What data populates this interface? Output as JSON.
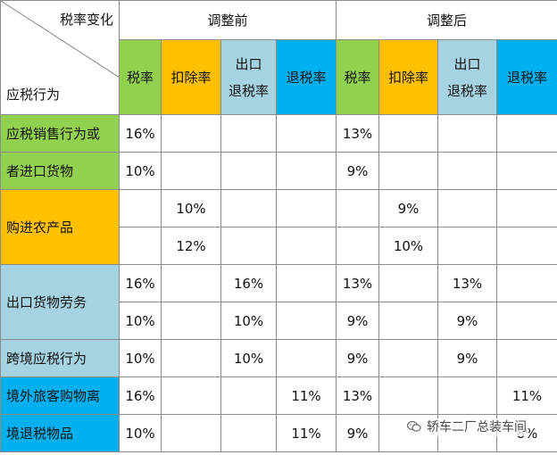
{
  "corner": {
    "top": "税率变化",
    "bottom": "应税行为"
  },
  "groups": {
    "before": "调整前",
    "after": "调整后"
  },
  "subheaders": {
    "tax_rate": "税率",
    "deduction": "扣除率",
    "export_rebate_line1": "出口",
    "export_rebate_line2": "退税率",
    "rebate": "退税率"
  },
  "categories": {
    "sales_line1": "应税销售行为或",
    "sales_line2": "者进口货物",
    "farm": "购进农产品",
    "export": "出口货物劳务",
    "cross": "跨境应税行为",
    "tourist_line1": "境外旅客购物离",
    "tourist_line2": "境退税物品"
  },
  "rows": [
    {
      "b_tax": "16%",
      "b_ded": "",
      "b_exp": "",
      "b_reb": "",
      "a_tax": "13%",
      "a_ded": "",
      "a_exp": "",
      "a_reb": ""
    },
    {
      "b_tax": "10%",
      "b_ded": "",
      "b_exp": "",
      "b_reb": "",
      "a_tax": "9%",
      "a_ded": "",
      "a_exp": "",
      "a_reb": ""
    },
    {
      "b_tax": "",
      "b_ded": "10%",
      "b_exp": "",
      "b_reb": "",
      "a_tax": "",
      "a_ded": "9%",
      "a_exp": "",
      "a_reb": ""
    },
    {
      "b_tax": "",
      "b_ded": "12%",
      "b_exp": "",
      "b_reb": "",
      "a_tax": "",
      "a_ded": "10%",
      "a_exp": "",
      "a_reb": ""
    },
    {
      "b_tax": "16%",
      "b_ded": "",
      "b_exp": "16%",
      "b_reb": "",
      "a_tax": "13%",
      "a_ded": "",
      "a_exp": "13%",
      "a_reb": ""
    },
    {
      "b_tax": "10%",
      "b_ded": "",
      "b_exp": "10%",
      "b_reb": "",
      "a_tax": "9%",
      "a_ded": "",
      "a_exp": "9%",
      "a_reb": ""
    },
    {
      "b_tax": "10%",
      "b_ded": "",
      "b_exp": "10%",
      "b_reb": "",
      "a_tax": "9%",
      "a_ded": "",
      "a_exp": "9%",
      "a_reb": ""
    },
    {
      "b_tax": "16%",
      "b_ded": "",
      "b_exp": "",
      "b_reb": "11%",
      "a_tax": "13%",
      "a_ded": "",
      "a_exp": "",
      "a_reb": "11%"
    },
    {
      "b_tax": "10%",
      "b_ded": "",
      "b_exp": "",
      "b_reb": "11%",
      "a_tax": "9%",
      "a_ded": "",
      "a_exp": "",
      "a_reb": "8%"
    }
  ],
  "watermark": "轿车二厂总装车间",
  "colors": {
    "green": "#92d050",
    "orange": "#ffc000",
    "light_blue": "#a6d3e1",
    "blue": "#00b0f0"
  },
  "icons": {
    "watermark": "wechat-chat-icon"
  }
}
